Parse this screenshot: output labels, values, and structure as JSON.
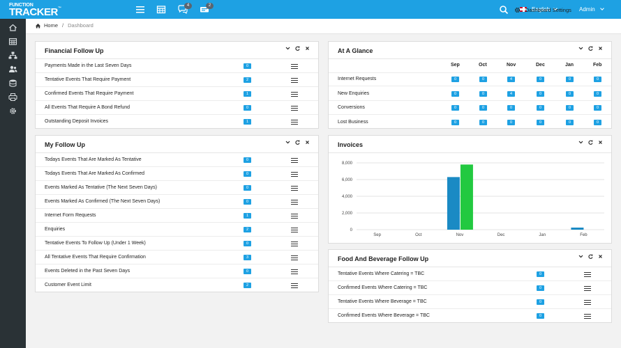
{
  "header": {
    "logo_line1": "FUNCTION",
    "logo_line2": "TRACKER",
    "logo_tm": "™",
    "icons": [
      {
        "name": "menu-icon",
        "badge": ""
      },
      {
        "name": "calendar-icon",
        "badge": ""
      },
      {
        "name": "chat-icon",
        "badge": "4"
      },
      {
        "name": "ticket-icon",
        "badge": "2"
      }
    ],
    "language": "English",
    "user": "Admin"
  },
  "sidebar": {
    "items": [
      "home-icon",
      "calendar-icon",
      "sitemap-icon",
      "users-icon",
      "database-icon",
      "print-icon",
      "gear-icon"
    ]
  },
  "breadcrumb": {
    "home": "Home",
    "separator": "/",
    "current": "Dashboard"
  },
  "dashboard_settings": "Dashboard Settings",
  "financial": {
    "title": "Financial Follow Up",
    "rows": [
      {
        "label": "Payments Made in the Last Seven Days",
        "value": "0"
      },
      {
        "label": "Tentative Events That Require Payment",
        "value": "2"
      },
      {
        "label": "Confirmed Events That Require Payment",
        "value": "1"
      },
      {
        "label": "All Events That Require A Bond Refund",
        "value": "0"
      },
      {
        "label": "Outstanding Deposit Invoices",
        "value": "1"
      }
    ]
  },
  "myfollow": {
    "title": "My Follow Up",
    "rows": [
      {
        "label": "Todays Events That Are Marked As Tentative",
        "value": "0"
      },
      {
        "label": "Todays Events That Are Marked As Confirmed",
        "value": "0"
      },
      {
        "label": "Events Marked As Tentative (The Next Seven Days)",
        "value": "0"
      },
      {
        "label": "Events Marked As Confirmed (The Next Seven Days)",
        "value": "0"
      },
      {
        "label": "Internet Form Requests",
        "value": "1"
      },
      {
        "label": "Enquiries",
        "value": "2"
      },
      {
        "label": "Tentative Events To Follow Up (Under 1 Week)",
        "value": "0"
      },
      {
        "label": "All Tentative Events That Require Confirmation",
        "value": "3"
      },
      {
        "label": "Events Deleted in the Past Seven Days",
        "value": "0"
      },
      {
        "label": "Customer Event Limit",
        "value": "2"
      }
    ]
  },
  "glance": {
    "title": "At A Glance",
    "months": [
      "Sep",
      "Oct",
      "Nov",
      "Dec",
      "Jan",
      "Feb"
    ],
    "rows": [
      {
        "label": "Internet Requests",
        "values": [
          "0",
          "0",
          "4",
          "0",
          "0",
          "0"
        ]
      },
      {
        "label": "New Enquiries",
        "values": [
          "0",
          "0",
          "4",
          "0",
          "0",
          "0"
        ]
      },
      {
        "label": "Conversions",
        "values": [
          "0",
          "0",
          "0",
          "0",
          "0",
          "0"
        ]
      },
      {
        "label": "Lost Business",
        "values": [
          "0",
          "0",
          "0",
          "0",
          "0",
          "0"
        ]
      }
    ]
  },
  "invoices": {
    "title": "Invoices",
    "colors": [
      "#1a8ac4",
      "#22c940"
    ]
  },
  "chart_data": {
    "type": "bar",
    "categories": [
      "Sep",
      "Oct",
      "Nov",
      "Dec",
      "Jan",
      "Feb"
    ],
    "series": [
      {
        "values": [
          0,
          0,
          6300,
          0,
          0,
          250
        ]
      },
      {
        "values": [
          0,
          0,
          7800,
          0,
          0,
          0
        ]
      }
    ],
    "ylim": [
      0,
      8000
    ],
    "yticks": [
      0,
      2000,
      4000,
      6000,
      8000
    ],
    "ytick_labels": [
      "0",
      "2,000",
      "4,000",
      "6,000",
      "8,000"
    ],
    "grid": true
  },
  "food": {
    "title": "Food And Beverage Follow Up",
    "rows": [
      {
        "label": "Tentative Events Where Catering = TBC",
        "value": "0"
      },
      {
        "label": "Confirmed Events Where Catering = TBC",
        "value": "0"
      },
      {
        "label": "Tentative Events Where Beverage = TBC",
        "value": "0"
      },
      {
        "label": "Confirmed Events Where Beverage = TBC",
        "value": "0"
      }
    ]
  }
}
